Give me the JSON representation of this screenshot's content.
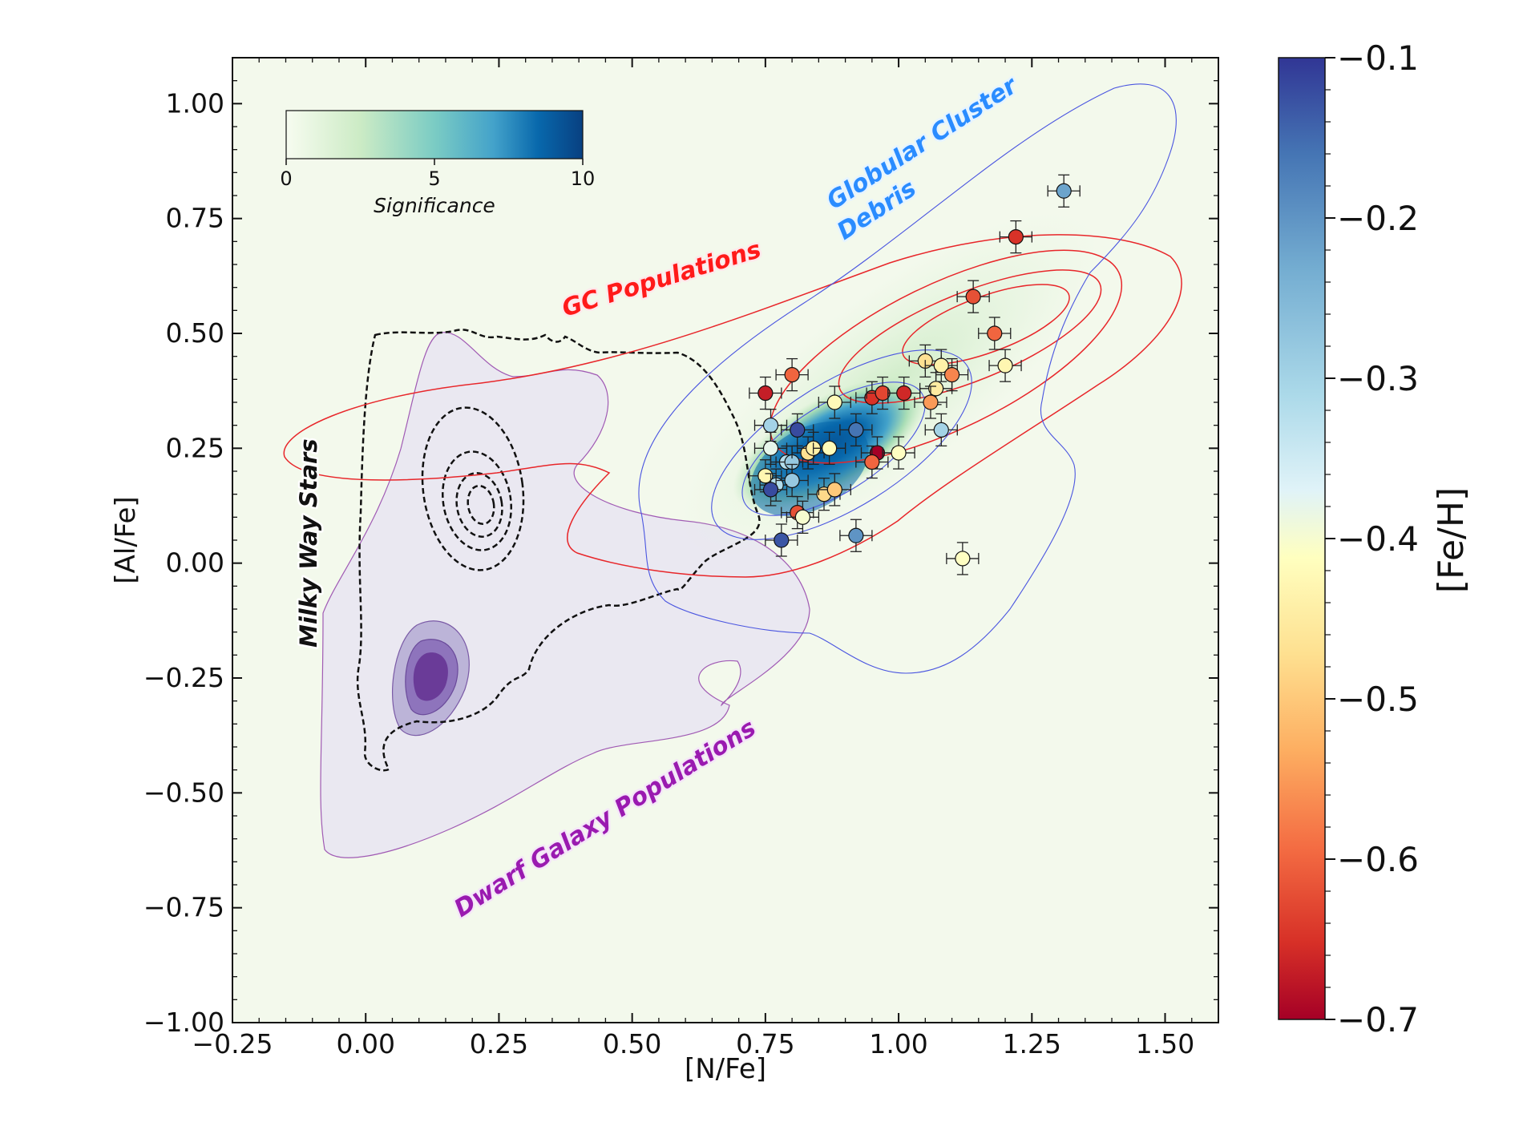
{
  "chart_data": {
    "type": "scatter",
    "xlabel": "[N/Fe]",
    "ylabel": "[Al/Fe]",
    "xlim": [
      -0.25,
      1.6
    ],
    "ylim": [
      -1.0,
      1.1
    ],
    "xticks": [
      -0.25,
      0.0,
      0.25,
      0.5,
      0.75,
      1.0,
      1.25,
      1.5
    ],
    "xtick_labels": [
      "−0.25",
      "0.00",
      "0.25",
      "0.50",
      "0.75",
      "1.00",
      "1.25",
      "1.50"
    ],
    "yticks": [
      -1.0,
      -0.75,
      -0.5,
      -0.25,
      0.0,
      0.25,
      0.5,
      0.75,
      1.0
    ],
    "ytick_labels": [
      "−1.00",
      "−0.75",
      "−0.50",
      "−0.25",
      "0.00",
      "0.25",
      "0.50",
      "0.75",
      "1.00"
    ],
    "colorbar": {
      "label": "[Fe/H]",
      "range": [
        -0.7,
        -0.1
      ],
      "ticks": [
        -0.1,
        -0.2,
        -0.3,
        -0.4,
        -0.5,
        -0.6,
        -0.7
      ],
      "tick_labels": [
        "−0.1",
        "−0.2",
        "−0.3",
        "−0.4",
        "−0.5",
        "−0.6",
        "−0.7"
      ],
      "colormap": "RdYlBu"
    },
    "significance_colorbar": {
      "label": "Significance",
      "range": [
        0,
        10
      ],
      "ticks": [
        0,
        5,
        10
      ],
      "tick_labels": [
        "0",
        "5",
        "10"
      ],
      "colormap": "GnBu"
    },
    "annotations": [
      {
        "text": "GC Populations",
        "color": "#ff1a1a",
        "x": 0.55,
        "y": 0.55
      },
      {
        "text": "Globular Cluster",
        "color": "#2a8cff",
        "x": 1.08,
        "y": 0.84
      },
      {
        "text": "Debris",
        "color": "#2a8cff",
        "x": 1.05,
        "y": 0.76
      },
      {
        "text": "Milky Way Stars",
        "color": "#111111",
        "x": -0.12,
        "y": 0.07
      },
      {
        "text": "Dwarf Galaxy Populations",
        "color": "#9a1ab0",
        "x": 0.45,
        "y": -0.6
      }
    ],
    "points": [
      {
        "x": 1.31,
        "y": 0.81,
        "feh": -0.22
      },
      {
        "x": 1.22,
        "y": 0.71,
        "feh": -0.65
      },
      {
        "x": 1.14,
        "y": 0.58,
        "feh": -0.62
      },
      {
        "x": 1.18,
        "y": 0.5,
        "feh": -0.6
      },
      {
        "x": 1.2,
        "y": 0.43,
        "feh": -0.43
      },
      {
        "x": 1.05,
        "y": 0.44,
        "feh": -0.47
      },
      {
        "x": 1.08,
        "y": 0.43,
        "feh": -0.44
      },
      {
        "x": 1.1,
        "y": 0.41,
        "feh": -0.57
      },
      {
        "x": 1.07,
        "y": 0.38,
        "feh": -0.45
      },
      {
        "x": 1.06,
        "y": 0.35,
        "feh": -0.55
      },
      {
        "x": 1.08,
        "y": 0.29,
        "feh": -0.3
      },
      {
        "x": 1.12,
        "y": 0.01,
        "feh": -0.41
      },
      {
        "x": 0.75,
        "y": 0.37,
        "feh": -0.67
      },
      {
        "x": 0.8,
        "y": 0.41,
        "feh": -0.6
      },
      {
        "x": 0.88,
        "y": 0.35,
        "feh": -0.42
      },
      {
        "x": 0.95,
        "y": 0.36,
        "feh": -0.65
      },
      {
        "x": 0.97,
        "y": 0.37,
        "feh": -0.63
      },
      {
        "x": 1.01,
        "y": 0.37,
        "feh": -0.66
      },
      {
        "x": 0.76,
        "y": 0.3,
        "feh": -0.3
      },
      {
        "x": 0.81,
        "y": 0.29,
        "feh": -0.12
      },
      {
        "x": 0.92,
        "y": 0.29,
        "feh": -0.16
      },
      {
        "x": 0.76,
        "y": 0.25,
        "feh": -0.38
      },
      {
        "x": 0.79,
        "y": 0.22,
        "feh": -0.32
      },
      {
        "x": 0.8,
        "y": 0.22,
        "feh": -0.28
      },
      {
        "x": 0.83,
        "y": 0.24,
        "feh": -0.47
      },
      {
        "x": 0.84,
        "y": 0.25,
        "feh": -0.44
      },
      {
        "x": 0.87,
        "y": 0.25,
        "feh": -0.42
      },
      {
        "x": 0.96,
        "y": 0.24,
        "feh": -0.7
      },
      {
        "x": 0.95,
        "y": 0.22,
        "feh": -0.6
      },
      {
        "x": 1.0,
        "y": 0.24,
        "feh": -0.41
      },
      {
        "x": 0.75,
        "y": 0.19,
        "feh": -0.43
      },
      {
        "x": 0.77,
        "y": 0.17,
        "feh": -0.32
      },
      {
        "x": 0.8,
        "y": 0.18,
        "feh": -0.28
      },
      {
        "x": 0.76,
        "y": 0.16,
        "feh": -0.12
      },
      {
        "x": 0.86,
        "y": 0.15,
        "feh": -0.48
      },
      {
        "x": 0.88,
        "y": 0.16,
        "feh": -0.5
      },
      {
        "x": 0.81,
        "y": 0.11,
        "feh": -0.62
      },
      {
        "x": 0.82,
        "y": 0.1,
        "feh": -0.4
      },
      {
        "x": 0.78,
        "y": 0.05,
        "feh": -0.13
      },
      {
        "x": 0.92,
        "y": 0.06,
        "feh": -0.2
      }
    ]
  }
}
